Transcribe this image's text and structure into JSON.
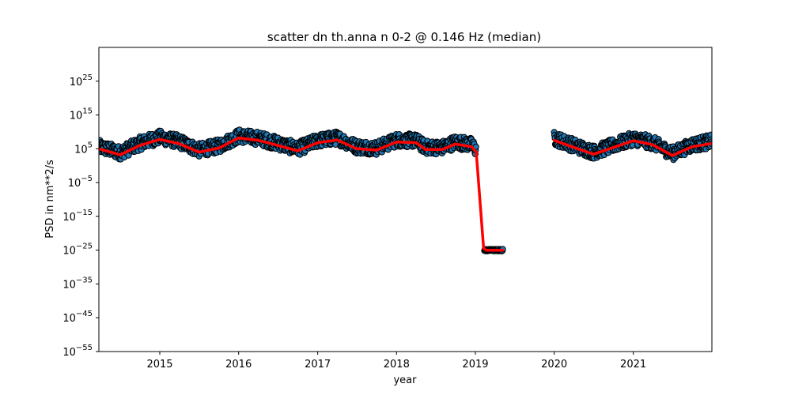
{
  "chart_data": {
    "type": "scatter",
    "title": "scatter dn th.anna n 0-2 @ 0.146 Hz (median)",
    "xlabel": "year",
    "ylabel": "PSD in nm**2/s",
    "x_axis_type": "date",
    "xlim": [
      "2014-03-25",
      "2021-12-31"
    ],
    "x_ticks": [
      "2015",
      "2016",
      "2017",
      "2018",
      "2019",
      "2020",
      "2021"
    ],
    "y_scale": "log",
    "ylim": [
      1e-55,
      1e+35
    ],
    "y_ticks": [
      {
        "base": "10",
        "exp": "25"
      },
      {
        "base": "10",
        "exp": "15"
      },
      {
        "base": "10",
        "exp": "5"
      },
      {
        "base": "10",
        "exp": "−5"
      },
      {
        "base": "10",
        "exp": "−15"
      },
      {
        "base": "10",
        "exp": "−25"
      },
      {
        "base": "10",
        "exp": "−35"
      },
      {
        "base": "10",
        "exp": "−45"
      },
      {
        "base": "10",
        "exp": "−55"
      }
    ],
    "grid": false,
    "series": [
      {
        "role": "scatter",
        "marker_fill": "#1f77b4",
        "marker_edge": "#000000",
        "segments": [
          {
            "start": "2014-03-25",
            "end": "2019-01-05",
            "center_log10": 6,
            "spread_log10": 2
          },
          {
            "start": "2019-02-12",
            "end": "2019-05-08",
            "center_log10": -25,
            "spread_log10": 0.3
          },
          {
            "start": "2020-01-01",
            "end": "2021-12-31",
            "center_log10": 5,
            "spread_log10": 2
          }
        ]
      },
      {
        "role": "median_line",
        "color": "#ff0000",
        "points": [
          [
            "2014-03-25",
            5.0
          ],
          [
            "2014-07-01",
            3.2
          ],
          [
            "2014-10-01",
            6.0
          ],
          [
            "2015-01-01",
            7.8
          ],
          [
            "2015-04-01",
            6.5
          ],
          [
            "2015-07-01",
            4.0
          ],
          [
            "2015-10-01",
            5.2
          ],
          [
            "2016-01-01",
            8.2
          ],
          [
            "2016-04-01",
            7.5
          ],
          [
            "2016-07-01",
            6.0
          ],
          [
            "2016-10-01",
            4.4
          ],
          [
            "2017-01-01",
            6.8
          ],
          [
            "2017-04-01",
            7.6
          ],
          [
            "2017-07-01",
            5.0
          ],
          [
            "2017-10-01",
            4.6
          ],
          [
            "2018-01-01",
            7.0
          ],
          [
            "2018-04-01",
            6.8
          ],
          [
            "2018-05-15",
            4.8
          ],
          [
            "2018-08-01",
            4.8
          ],
          [
            "2018-10-01",
            6.4
          ],
          [
            "2018-12-15",
            5.6
          ],
          [
            "2019-01-05",
            4.0
          ],
          [
            "2019-02-08",
            -24.5
          ],
          [
            "2019-02-20",
            -25.0
          ],
          [
            "2019-05-08",
            -25.0
          ]
        ],
        "points_after_gap": [
          [
            "2020-01-01",
            7.5
          ],
          [
            "2020-04-01",
            5.4
          ],
          [
            "2020-07-01",
            3.4
          ],
          [
            "2020-10-01",
            5.4
          ],
          [
            "2021-01-01",
            7.4
          ],
          [
            "2021-04-01",
            6.2
          ],
          [
            "2021-07-01",
            3.0
          ],
          [
            "2021-10-01",
            5.6
          ],
          [
            "2021-12-31",
            6.6
          ]
        ]
      }
    ]
  }
}
